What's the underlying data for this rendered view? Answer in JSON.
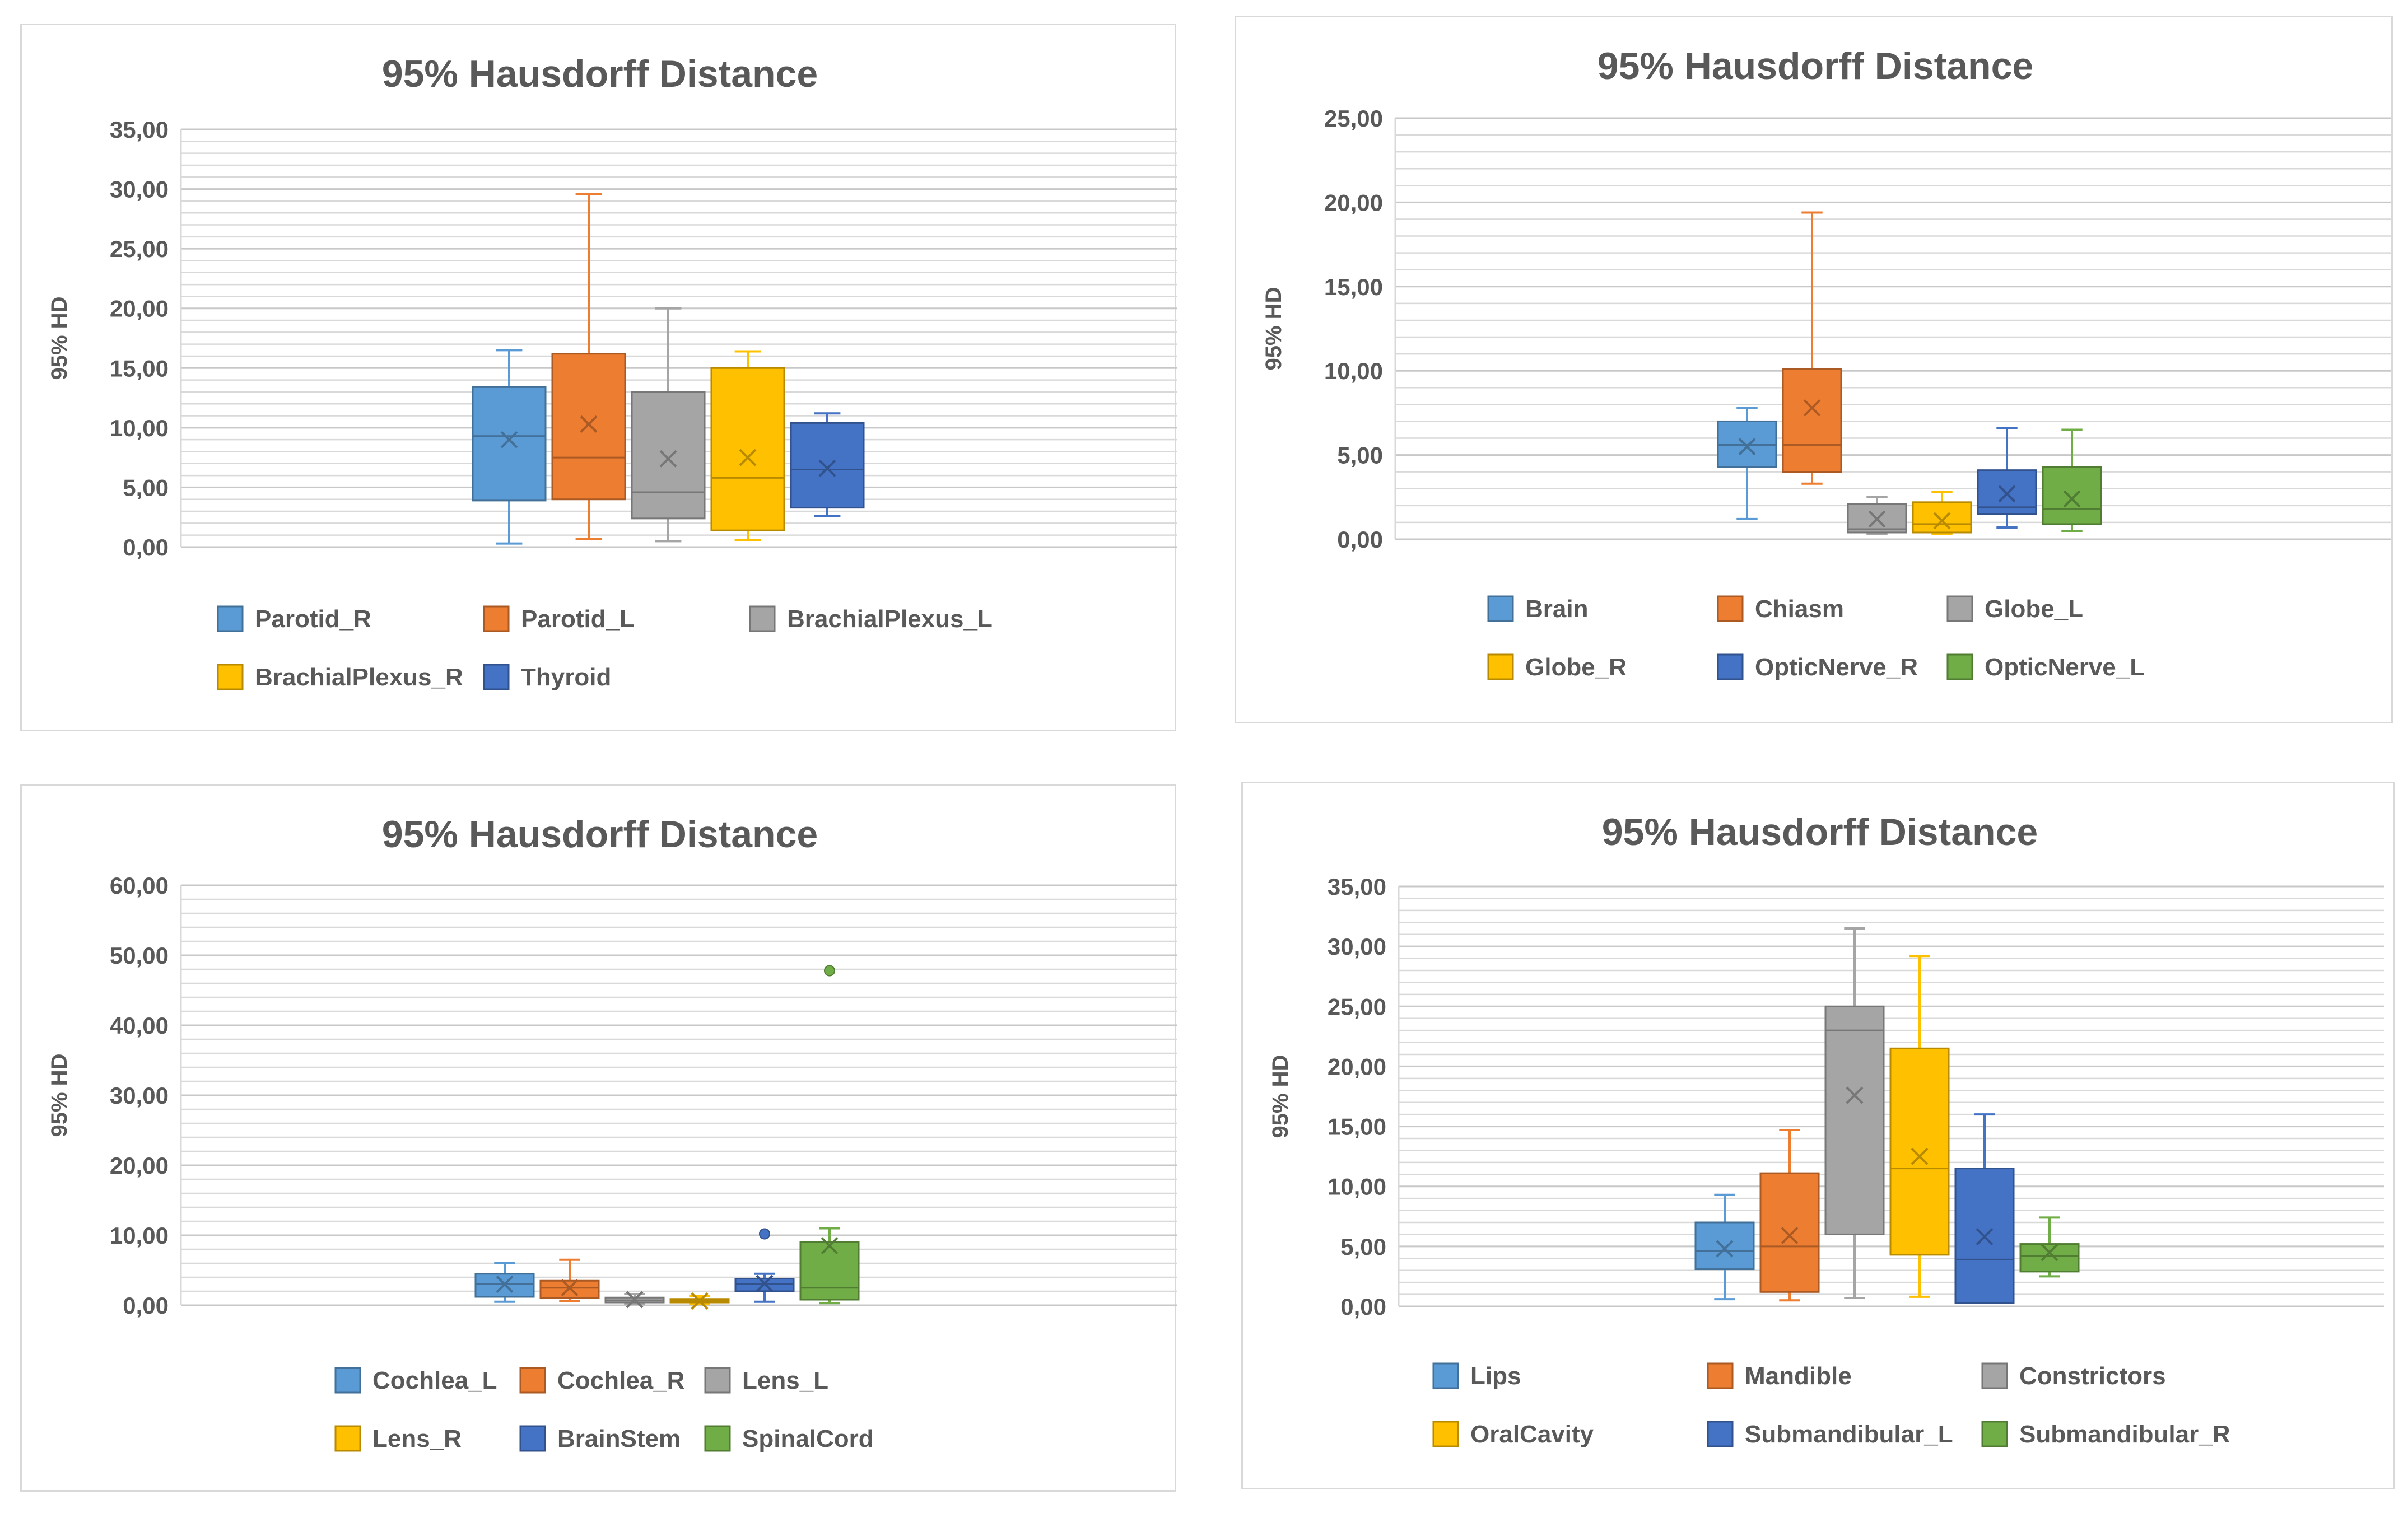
{
  "chart_data": [
    {
      "type": "box",
      "title": "95% Hausdorff Distance",
      "xlabel": "",
      "ylabel": "95% HD",
      "ylim": [
        0,
        35
      ],
      "y_ticks": [
        0,
        5,
        10,
        15,
        20,
        25,
        30,
        35
      ],
      "tick_labels": [
        "0,00",
        "5,00",
        "10,00",
        "15,00",
        "20,00",
        "25,00",
        "30,00",
        "35,00"
      ],
      "minor_grid_step": 1,
      "legend_position": "bottom",
      "series": [
        {
          "name": "Parotid_R",
          "color": "#5B9BD5",
          "min": 0.3,
          "q1": 3.9,
          "median": 9.3,
          "q3": 13.4,
          "max": 16.5,
          "mean": 9.0,
          "outliers": []
        },
        {
          "name": "Parotid_L",
          "color": "#ED7D31",
          "min": 0.7,
          "q1": 4.0,
          "median": 7.5,
          "q3": 16.2,
          "max": 29.6,
          "mean": 10.3,
          "outliers": []
        },
        {
          "name": "BrachialPlexus_L",
          "color": "#A5A5A5",
          "min": 0.5,
          "q1": 2.4,
          "median": 4.6,
          "q3": 13.0,
          "max": 20.0,
          "mean": 7.4,
          "outliers": []
        },
        {
          "name": "BrachialPlexus_R",
          "color": "#FFC000",
          "min": 0.6,
          "q1": 1.4,
          "median": 5.8,
          "q3": 15.0,
          "max": 16.4,
          "mean": 7.5,
          "outliers": []
        },
        {
          "name": "Thyroid",
          "color": "#4472C4",
          "min": 2.6,
          "q1": 3.3,
          "median": 6.5,
          "q3": 10.4,
          "max": 11.2,
          "mean": 6.6,
          "outliers": []
        }
      ]
    },
    {
      "type": "box",
      "title": "95% Hausdorff Distance",
      "xlabel": "",
      "ylabel": "95% HD",
      "ylim": [
        0,
        25
      ],
      "y_ticks": [
        0,
        5,
        10,
        15,
        20,
        25
      ],
      "tick_labels": [
        "0,00",
        "5,00",
        "10,00",
        "15,00",
        "20,00",
        "25,00"
      ],
      "minor_grid_step": 1,
      "legend_position": "bottom",
      "series": [
        {
          "name": "Brain",
          "color": "#5B9BD5",
          "min": 1.2,
          "q1": 4.3,
          "median": 5.6,
          "q3": 7.0,
          "max": 7.8,
          "mean": 5.5,
          "outliers": []
        },
        {
          "name": "Chiasm",
          "color": "#ED7D31",
          "min": 3.3,
          "q1": 4.0,
          "median": 5.6,
          "q3": 10.1,
          "max": 19.4,
          "mean": 7.8,
          "outliers": []
        },
        {
          "name": "Globe_L",
          "color": "#A5A5A5",
          "min": 0.3,
          "q1": 0.4,
          "median": 0.6,
          "q3": 2.1,
          "max": 2.5,
          "mean": 1.2,
          "outliers": []
        },
        {
          "name": "Globe_R",
          "color": "#FFC000",
          "min": 0.3,
          "q1": 0.4,
          "median": 0.9,
          "q3": 2.2,
          "max": 2.8,
          "mean": 1.1,
          "outliers": []
        },
        {
          "name": "OpticNerve_R",
          "color": "#4472C4",
          "min": 0.7,
          "q1": 1.5,
          "median": 1.9,
          "q3": 4.1,
          "max": 6.6,
          "mean": 2.7,
          "outliers": []
        },
        {
          "name": "OpticNerve_L",
          "color": "#70AD47",
          "min": 0.5,
          "q1": 0.9,
          "median": 1.8,
          "q3": 4.3,
          "max": 6.5,
          "mean": 2.4,
          "outliers": []
        }
      ]
    },
    {
      "type": "box",
      "title": "95% Hausdorff Distance",
      "xlabel": "",
      "ylabel": "95% HD",
      "ylim": [
        0,
        60
      ],
      "y_ticks": [
        0,
        10,
        20,
        30,
        40,
        50,
        60
      ],
      "tick_labels": [
        "0,00",
        "10,00",
        "20,00",
        "30,00",
        "40,00",
        "50,00",
        "60,00"
      ],
      "minor_grid_step": 2,
      "legend_position": "bottom",
      "series": [
        {
          "name": "Cochlea_L",
          "color": "#5B9BD5",
          "min": 0.5,
          "q1": 1.2,
          "median": 3.0,
          "q3": 4.5,
          "max": 6.0,
          "mean": 3.0,
          "outliers": []
        },
        {
          "name": "Cochlea_R",
          "color": "#ED7D31",
          "min": 0.6,
          "q1": 1.0,
          "median": 2.5,
          "q3": 3.5,
          "max": 6.5,
          "mean": 2.5,
          "outliers": []
        },
        {
          "name": "Lens_L",
          "color": "#A5A5A5",
          "min": 0.2,
          "q1": 0.4,
          "median": 0.7,
          "q3": 1.1,
          "max": 1.6,
          "mean": 0.8,
          "outliers": []
        },
        {
          "name": "Lens_R",
          "color": "#FFC000",
          "min": 0.2,
          "q1": 0.4,
          "median": 0.6,
          "q3": 0.9,
          "max": 1.3,
          "mean": 0.6,
          "outliers": []
        },
        {
          "name": "BrainStem",
          "color": "#4472C4",
          "min": 0.5,
          "q1": 2.0,
          "median": 3.0,
          "q3": 3.8,
          "max": 4.5,
          "mean": 3.1,
          "outliers": [
            10.2
          ]
        },
        {
          "name": "SpinalCord",
          "color": "#70AD47",
          "min": 0.3,
          "q1": 0.8,
          "median": 2.5,
          "q3": 9.0,
          "max": 11.0,
          "mean": 8.5,
          "outliers": [
            47.8
          ]
        }
      ]
    },
    {
      "type": "box",
      "title": "95% Hausdorff Distance",
      "xlabel": "",
      "ylabel": "95% HD",
      "ylim": [
        0,
        35
      ],
      "y_ticks": [
        0,
        5,
        10,
        15,
        20,
        25,
        30,
        35
      ],
      "tick_labels": [
        "0,00",
        "5,00",
        "10,00",
        "15,00",
        "20,00",
        "25,00",
        "30,00",
        "35,00"
      ],
      "minor_grid_step": 1,
      "legend_position": "bottom",
      "series": [
        {
          "name": "Lips",
          "color": "#5B9BD5",
          "min": 0.6,
          "q1": 3.1,
          "median": 4.6,
          "q3": 7.0,
          "max": 9.3,
          "mean": 4.8,
          "outliers": []
        },
        {
          "name": "Mandible",
          "color": "#ED7D31",
          "min": 0.5,
          "q1": 1.2,
          "median": 5.0,
          "q3": 11.1,
          "max": 14.7,
          "mean": 5.9,
          "outliers": []
        },
        {
          "name": "Constrictors",
          "color": "#A5A5A5",
          "min": 0.7,
          "q1": 6.0,
          "median": 23.0,
          "q3": 25.0,
          "max": 31.5,
          "mean": 17.6,
          "outliers": []
        },
        {
          "name": "OralCavity",
          "color": "#FFC000",
          "min": 0.8,
          "q1": 4.3,
          "median": 11.5,
          "q3": 21.5,
          "max": 29.2,
          "mean": 12.5,
          "outliers": []
        },
        {
          "name": "Submandibular_L",
          "color": "#4472C4",
          "min": 0.3,
          "q1": 0.3,
          "median": 3.9,
          "q3": 11.5,
          "max": 16.0,
          "mean": 5.8,
          "outliers": []
        },
        {
          "name": "Submandibular_R",
          "color": "#70AD47",
          "min": 2.5,
          "q1": 2.9,
          "median": 4.2,
          "q3": 5.2,
          "max": 7.4,
          "mean": 4.5,
          "outliers": []
        }
      ]
    }
  ]
}
